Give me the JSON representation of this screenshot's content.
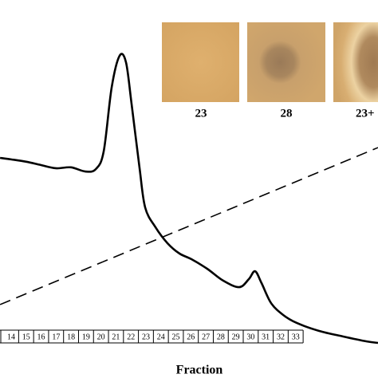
{
  "chart_data": {
    "type": "line",
    "x_label": "Fraction",
    "categories": [
      "14",
      "15",
      "16",
      "17",
      "18",
      "19",
      "20",
      "21",
      "22",
      "23",
      "24",
      "25",
      "26",
      "27",
      "28",
      "29",
      "30",
      "31",
      "32",
      "33"
    ],
    "category_positions": [
      14,
      15,
      16,
      17,
      18,
      19,
      20,
      21,
      22,
      23,
      24,
      25,
      26,
      27,
      28,
      29,
      30,
      31,
      32,
      33
    ],
    "xlim": [
      13.255,
      38.5
    ],
    "ylim": [
      0,
      100
    ],
    "series": [
      {
        "color": "#000000",
        "dash": false,
        "x": [
          13.26,
          14,
          15.01,
          15.97,
          16.98,
          17.99,
          18.95,
          19.65,
          20.18,
          20.71,
          21.24,
          21.67,
          22.04,
          22.57,
          22.95,
          23.64,
          24.44,
          25.24,
          26.03,
          27.1,
          28.16,
          29.23,
          29.87,
          30.29,
          30.72,
          31.36,
          32.16,
          33.06,
          34.55,
          36.15,
          37.75,
          38.5
        ],
        "values": [
          62.7,
          62.2,
          61.4,
          60.3,
          59.2,
          59.5,
          58.1,
          58.9,
          64.9,
          86.5,
          97.3,
          95.1,
          81.1,
          59.5,
          45.9,
          39.2,
          33.8,
          30.3,
          28.4,
          25.1,
          21.1,
          18.9,
          21.6,
          24.3,
          20.3,
          13.5,
          9.5,
          6.8,
          4.1,
          2.2,
          0.5,
          0
        ]
      },
      {
        "color": "#000000",
        "dash": true,
        "x": [
          13.26,
          38.5
        ],
        "values": [
          13.0,
          66.2
        ]
      }
    ],
    "insets": [
      {
        "label": "23"
      },
      {
        "label": "28"
      },
      {
        "label": "23+"
      }
    ]
  }
}
